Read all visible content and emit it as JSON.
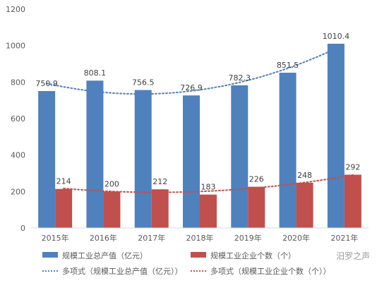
{
  "chart_data": {
    "type": "bar",
    "categories": [
      "2015年",
      "2016年",
      "2017年",
      "2018年",
      "2019年",
      "2020年",
      "2021年"
    ],
    "series": [
      {
        "name": "规模工业总产值（亿元）",
        "values": [
          750.9,
          808.1,
          756.5,
          726.9,
          782.3,
          851.5,
          1010.4
        ],
        "color": "#4f81bd"
      },
      {
        "name": "规模工业企业个数（个）",
        "values": [
          214,
          200,
          212,
          183,
          226,
          248,
          292
        ],
        "color": "#c0504d"
      }
    ],
    "trendlines": [
      {
        "name": "多项式（规模工业总产值（亿元））",
        "color": "#4f81bd",
        "style": "dotted"
      },
      {
        "name": "多项式（规模工业企业个数（个））",
        "color": "#c0504d",
        "style": "dotted"
      }
    ],
    "ylim": [
      0,
      1200
    ],
    "yticks": [
      "0",
      "200",
      "400",
      "600",
      "800",
      "1000",
      "1200"
    ],
    "grid": false,
    "legend_position": "bottom"
  },
  "watermark": "汨罗之声"
}
